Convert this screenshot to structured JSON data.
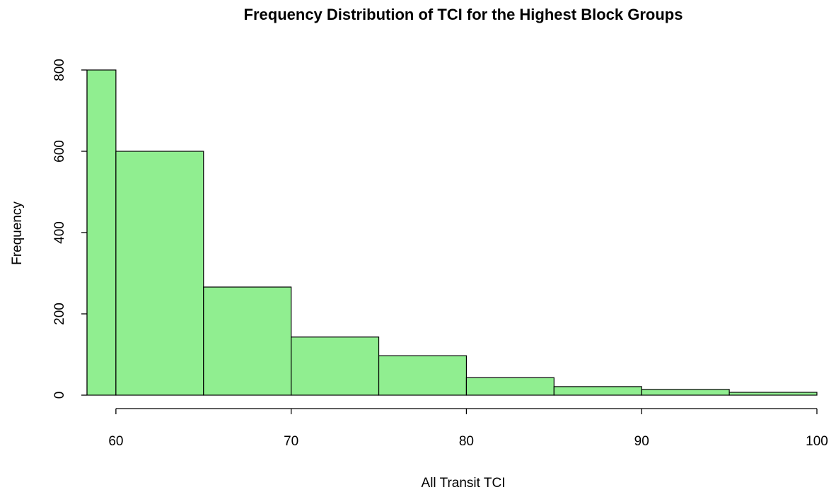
{
  "chart_data": {
    "type": "histogram",
    "title": "Frequency Distribution of TCI for the Highest Block Groups",
    "x_label": "All Transit TCI",
    "y_label": "Frequency",
    "bins": [
      55,
      60,
      65,
      70,
      75,
      80,
      85,
      90,
      95,
      100
    ],
    "values": [
      800,
      600,
      266,
      143,
      97,
      43,
      21,
      14,
      7
    ],
    "color": "#90ee90",
    "xlim": [
      58.35,
      100
    ],
    "ylim": [
      0,
      800
    ],
    "xticks": [
      60,
      70,
      80,
      90,
      100
    ],
    "yticks": [
      0,
      200,
      400,
      600,
      800
    ],
    "grid": false
  }
}
